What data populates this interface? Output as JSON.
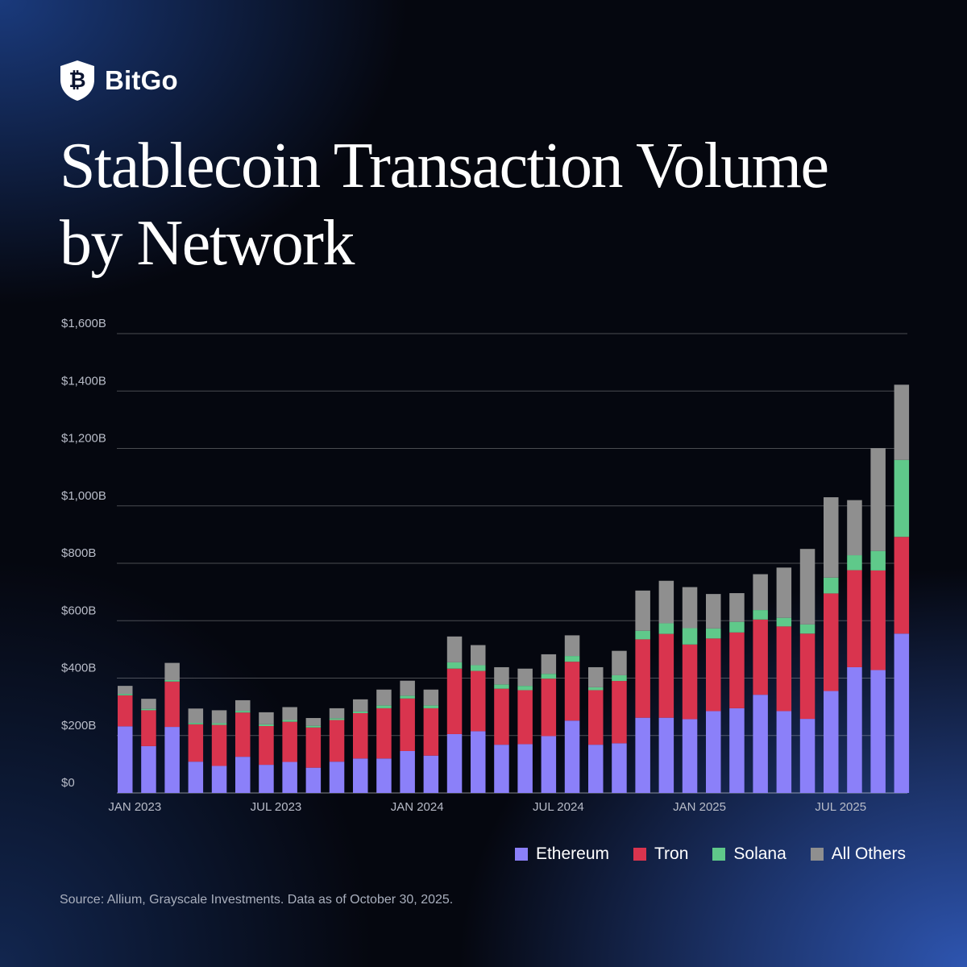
{
  "brand": {
    "name": "BitGo",
    "icon": "shield-bitcoin-icon"
  },
  "title_line1": "Stablecoin Transaction Volume",
  "title_line2": "by Network",
  "source": "Source: Allium, Grayscale Investments. Data as of October 30, 2025.",
  "chart_data": {
    "type": "bar",
    "stacked": true,
    "title": "Stablecoin Transaction Volume by Network",
    "xlabel": "",
    "ylabel": "",
    "ylim": [
      0,
      1600
    ],
    "y_ticks": [
      0,
      200,
      400,
      600,
      800,
      1000,
      1200,
      1400,
      1600
    ],
    "y_tick_labels": [
      "$0",
      "$200B",
      "$400B",
      "$600B",
      "$800B",
      "$1,000B",
      "$1,200B",
      "$1,400B",
      "$1,600B"
    ],
    "x_tick_labels": [
      {
        "index": 0,
        "label": "JAN 2023"
      },
      {
        "index": 6,
        "label": "JUL 2023"
      },
      {
        "index": 12,
        "label": "JAN 2024"
      },
      {
        "index": 18,
        "label": "JUL 2024"
      },
      {
        "index": 24,
        "label": "JAN 2025"
      },
      {
        "index": 30,
        "label": "JUL 2025"
      }
    ],
    "grid": true,
    "legend_position": "bottom-right",
    "categories": [
      "2023-01",
      "2023-02",
      "2023-03",
      "2023-04",
      "2023-05",
      "2023-06",
      "2023-07",
      "2023-08",
      "2023-09",
      "2023-10",
      "2023-11",
      "2023-12",
      "2024-01",
      "2024-02",
      "2024-03",
      "2024-04",
      "2024-05",
      "2024-06",
      "2024-07",
      "2024-08",
      "2024-09",
      "2024-10",
      "2024-11",
      "2024-12",
      "2025-01",
      "2025-02",
      "2025-03",
      "2025-04",
      "2025-05",
      "2025-06",
      "2025-07",
      "2025-08",
      "2025-09",
      "2025-10"
    ],
    "series": [
      {
        "name": "Ethereum",
        "color": "#8b80f9",
        "values": [
          232,
          163,
          230,
          109,
          94,
          126,
          98,
          108,
          88,
          109,
          120,
          120,
          146,
          130,
          205,
          215,
          168,
          170,
          198,
          252,
          168,
          173,
          262,
          262,
          257,
          285,
          295,
          342,
          285,
          258,
          355,
          438,
          428,
          555
        ]
      },
      {
        "name": "Tron",
        "color": "#d9344e",
        "values": [
          108,
          125,
          158,
          130,
          143,
          154,
          135,
          140,
          140,
          145,
          158,
          175,
          183,
          165,
          228,
          210,
          195,
          188,
          200,
          205,
          190,
          217,
          273,
          292,
          260,
          253,
          264,
          262,
          295,
          297,
          340,
          338,
          347,
          337
        ]
      },
      {
        "name": "Solana",
        "color": "#5fc98a",
        "values": [
          5,
          5,
          5,
          5,
          6,
          6,
          6,
          6,
          6,
          6,
          6,
          10,
          10,
          10,
          22,
          20,
          15,
          15,
          17,
          20,
          10,
          20,
          30,
          37,
          57,
          35,
          37,
          33,
          30,
          32,
          55,
          52,
          68,
          268
        ]
      },
      {
        "name": "All Others",
        "color": "#8f8f8f",
        "values": [
          28,
          35,
          60,
          50,
          45,
          37,
          42,
          45,
          27,
          35,
          42,
          55,
          52,
          55,
          90,
          70,
          60,
          60,
          68,
          72,
          70,
          85,
          140,
          148,
          143,
          120,
          100,
          125,
          175,
          263,
          280,
          192,
          358,
          262
        ]
      }
    ]
  }
}
